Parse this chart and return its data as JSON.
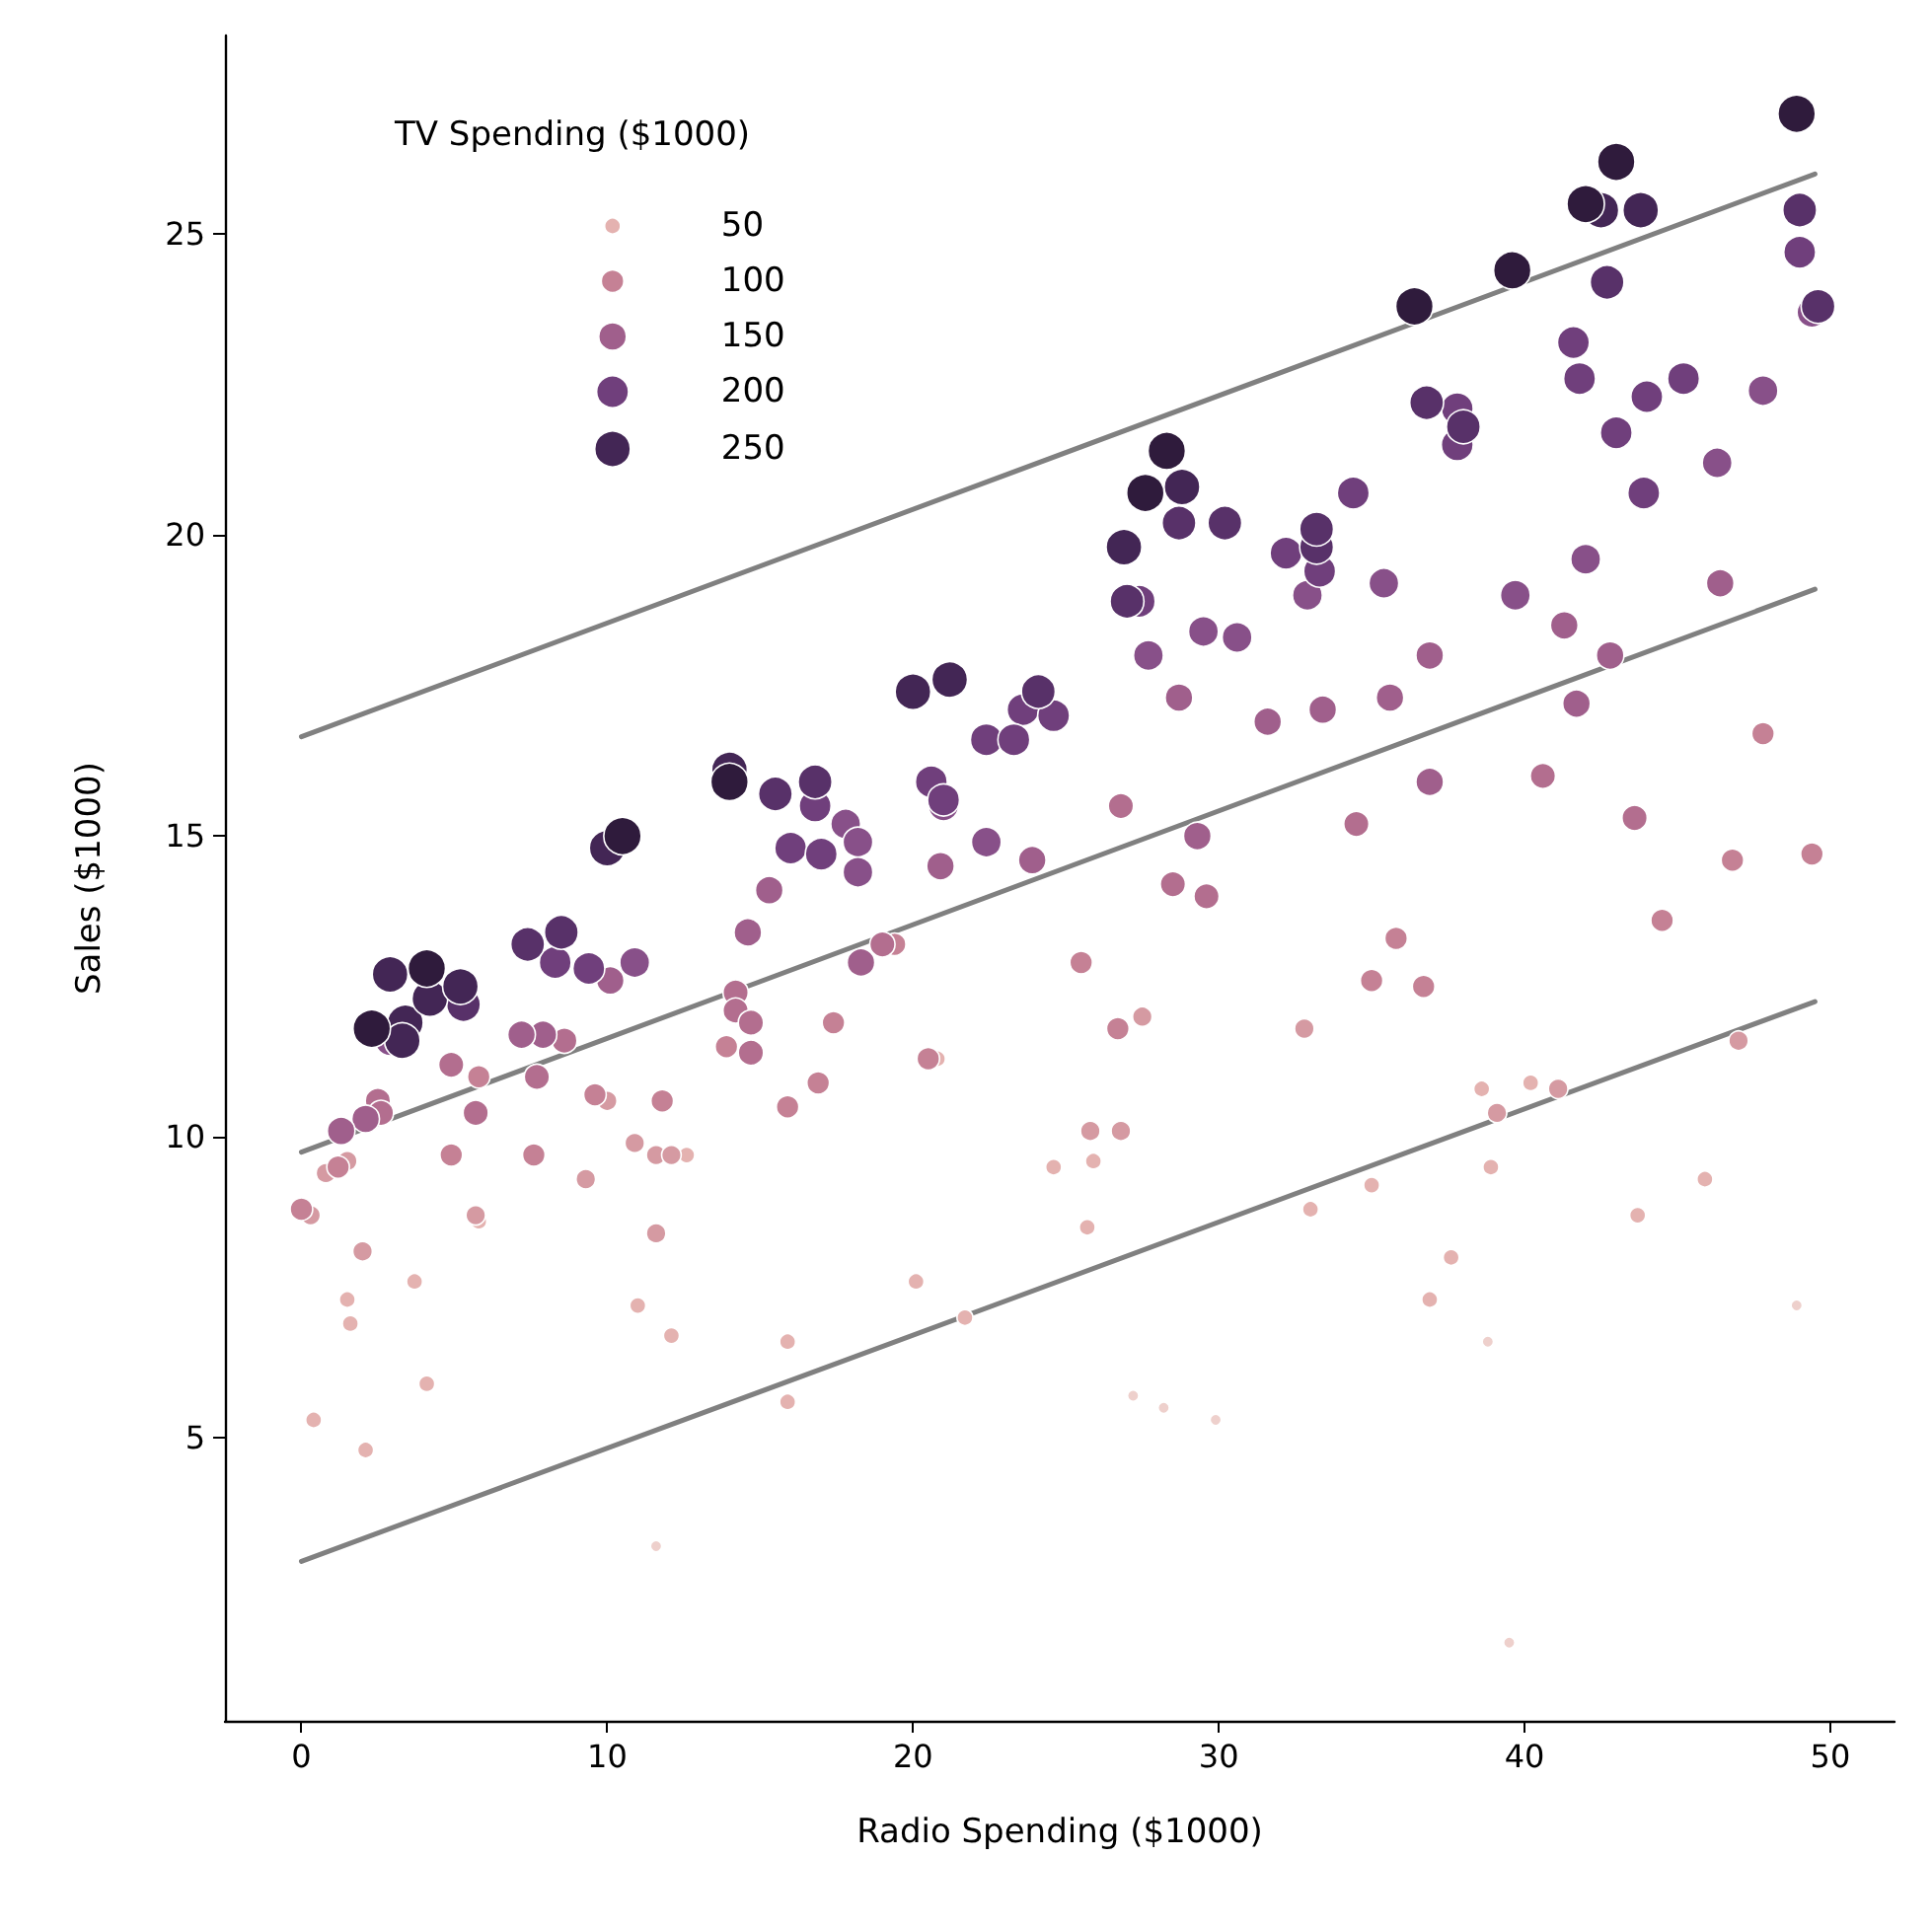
{
  "chart_data": {
    "type": "bubble",
    "xlabel": "Radio Spending ($1000)",
    "ylabel": "Sales ($1000)",
    "legend_title": "TV Spending ($1000)",
    "size_legend": [
      50,
      100,
      150,
      200,
      250
    ],
    "xlim": [
      -2.5,
      52.1
    ],
    "ylim": [
      0.3,
      28.3
    ],
    "xticks": [
      0,
      10,
      20,
      30,
      40,
      50
    ],
    "yticks": [
      5,
      10,
      15,
      20,
      25
    ],
    "grid": false,
    "series": [
      {
        "color": "#eed0cc",
        "x": [
          11.6,
          27.2,
          28.2,
          29.9,
          38.8,
          39.5,
          48.9
        ],
        "values": [
          3.2,
          5.7,
          5.5,
          5.3,
          6.6,
          1.6,
          7.2
        ],
        "sizes": [
          25,
          25,
          25,
          25,
          25,
          25,
          25
        ]
      },
      {
        "color": "#e4b2b0",
        "x": [
          20.8,
          1.5,
          1.6,
          3.7,
          4.1,
          0.4,
          2.1,
          5.8,
          12.6,
          11.0,
          12.1,
          15.9,
          15.9,
          20.1,
          21.7,
          24.6,
          25.9,
          25.7,
          33.0,
          35.0,
          36.9,
          37.6,
          38.6,
          38.9,
          40.2,
          43.7,
          45.9
        ],
        "values": [
          11.3,
          7.3,
          6.9,
          7.6,
          5.9,
          5.3,
          4.8,
          8.6,
          9.7,
          7.2,
          6.7,
          6.6,
          5.6,
          7.6,
          7.0,
          9.5,
          9.6,
          8.5,
          8.8,
          9.2,
          7.3,
          8.0,
          10.8,
          9.5,
          10.9,
          8.7,
          9.3
        ],
        "sizes": [
          50,
          50,
          50,
          50,
          50,
          50,
          50,
          50,
          50,
          50,
          50,
          50,
          50,
          50,
          50,
          50,
          50,
          50,
          50,
          50,
          50,
          50,
          50,
          50,
          50,
          50,
          50
        ]
      },
      {
        "color": "#d59aa2",
        "x": [
          1.5,
          0.8,
          0.3,
          2.0,
          5.7,
          10.0,
          9.3,
          10.9,
          11.6,
          12.1,
          11.6,
          25.8,
          26.8,
          27.5,
          32.8,
          39.1,
          41.1,
          47.0
        ],
        "values": [
          9.6,
          9.4,
          8.7,
          8.1,
          8.7,
          10.6,
          9.3,
          9.9,
          9.7,
          9.7,
          8.4,
          10.1,
          10.1,
          12.0,
          11.8,
          10.4,
          10.8,
          11.6
        ],
        "sizes": [
          75,
          75,
          75,
          75,
          75,
          75,
          75,
          75,
          75,
          75,
          75,
          75,
          75,
          75,
          75,
          75,
          75,
          75
        ]
      },
      {
        "color": "#c58195",
        "x": [
          19.4,
          13.9,
          17.4,
          16.9,
          15.9,
          20.5,
          5.8,
          4.9,
          1.2,
          0.0,
          7.6,
          9.6,
          11.8,
          25.5,
          26.7,
          35.0,
          35.8,
          36.7,
          44.5,
          46.8,
          47.8,
          49.4
        ],
        "values": [
          13.2,
          11.5,
          11.9,
          10.9,
          10.5,
          11.3,
          11.0,
          9.7,
          9.5,
          8.8,
          9.7,
          10.7,
          10.6,
          12.9,
          11.8,
          12.6,
          13.3,
          12.5,
          13.6,
          14.6,
          16.7,
          14.7
        ],
        "sizes": [
          100,
          100,
          100,
          100,
          100,
          100,
          100,
          100,
          100,
          100,
          100,
          100,
          100,
          100,
          100,
          100,
          100,
          100,
          100,
          100,
          100,
          100
        ]
      },
      {
        "color": "#b36e8f",
        "x": [
          40.6,
          43.6,
          34.5,
          28.5,
          29.6,
          26.8,
          19.0,
          14.2,
          14.2,
          14.7,
          14.7,
          7.7,
          8.6,
          4.9,
          5.7,
          2.5,
          2.6
        ],
        "values": [
          16.0,
          15.3,
          15.2,
          14.2,
          14.0,
          15.5,
          13.2,
          12.4,
          12.1,
          11.9,
          11.4,
          11.0,
          11.6,
          11.2,
          10.4,
          10.6,
          10.4
        ],
        "sizes": [
          125,
          125,
          125,
          125,
          125,
          125,
          125,
          125,
          125,
          125,
          125,
          125,
          125,
          125,
          125,
          125,
          125
        ]
      },
      {
        "color": "#a05f8c",
        "x": [
          46.4,
          41.3,
          42.8,
          41.7,
          36.9,
          35.6,
          28.7,
          31.6,
          33.4,
          36.9,
          29.3,
          23.9,
          20.9,
          15.3,
          18.3,
          14.6,
          10.1,
          7.9,
          7.2,
          2.1,
          1.3
        ],
        "values": [
          19.2,
          18.5,
          18.0,
          17.2,
          18.0,
          17.3,
          17.3,
          16.9,
          17.1,
          15.9,
          15.0,
          14.6,
          14.5,
          14.1,
          12.9,
          13.4,
          12.6,
          11.7,
          11.7,
          10.3,
          10.1
        ],
        "sizes": [
          150,
          150,
          150,
          150,
          150,
          150,
          150,
          150,
          150,
          150,
          150,
          150,
          150,
          150,
          150,
          150,
          150,
          150,
          150,
          150,
          150
        ]
      },
      {
        "color": "#885089",
        "x": [
          49.4,
          42.0,
          39.7,
          47.8,
          46.3,
          35.4,
          32.9,
          30.6,
          29.5,
          27.7,
          21.0,
          22.4,
          17.8,
          18.2,
          18.2,
          10.9,
          2.9
        ],
        "values": [
          23.7,
          19.6,
          19.0,
          22.4,
          21.2,
          19.2,
          19.0,
          18.3,
          18.4,
          18.0,
          15.5,
          14.9,
          15.2,
          14.9,
          14.4,
          12.9,
          11.6
        ],
        "sizes": [
          175,
          175,
          175,
          175,
          175,
          175,
          175,
          175,
          175,
          175,
          175,
          175,
          175,
          175,
          175,
          175,
          175
        ]
      },
      {
        "color": "#703f7c",
        "x": [
          8.3,
          23.6,
          27.4,
          49.0,
          37.8,
          37.8,
          41.6,
          41.8,
          44.0,
          45.2,
          43.0,
          43.9,
          34.4,
          33.3,
          32.2,
          24.6,
          22.4,
          23.3,
          20.6,
          21.0,
          16.8,
          16.0,
          17.0,
          9.4
        ],
        "values": [
          12.9,
          17.1,
          18.9,
          24.7,
          22.1,
          21.5,
          23.2,
          22.6,
          22.3,
          22.6,
          21.7,
          20.7,
          20.7,
          19.4,
          19.7,
          17.0,
          16.6,
          16.6,
          15.9,
          15.6,
          15.5,
          14.8,
          14.7,
          12.8
        ],
        "sizes": [
          200,
          200,
          200,
          200,
          200,
          200,
          200,
          200,
          200,
          200,
          200,
          200,
          200,
          200,
          200,
          200,
          200,
          200,
          200,
          200,
          200,
          200,
          200,
          200
        ]
      },
      {
        "color": "#583169",
        "x": [
          5.3,
          7.4,
          8.5,
          24.1,
          28.7,
          27.0,
          49.0,
          49.6,
          42.7,
          36.8,
          38.0,
          33.2,
          33.2,
          30.2,
          16.8,
          15.5
        ],
        "values": [
          12.2,
          13.2,
          13.4,
          17.4,
          20.2,
          18.9,
          25.4,
          23.8,
          24.2,
          22.2,
          21.8,
          19.8,
          20.1,
          20.2,
          15.9,
          15.7
        ],
        "sizes": [
          225,
          225,
          225,
          225,
          225,
          225,
          225,
          225,
          225,
          225,
          225,
          225,
          225,
          225,
          225,
          225
        ]
      },
      {
        "color": "#432655",
        "x": [
          2.9,
          3.4,
          4.2,
          3.3,
          5.2,
          10.0,
          14.0,
          20.0,
          21.2,
          26.9,
          28.8,
          42.5,
          43.8
        ],
        "values": [
          12.7,
          11.9,
          12.3,
          11.6,
          12.5,
          14.8,
          16.1,
          17.4,
          17.6,
          19.8,
          20.8,
          25.4,
          25.4
        ],
        "sizes": [
          250,
          250,
          250,
          250,
          250,
          250,
          250,
          250,
          250,
          250,
          250,
          250,
          250
        ]
      },
      {
        "color": "#2f1b3c",
        "x": [
          2.3,
          4.1,
          10.5,
          14.0,
          27.6,
          28.3,
          36.4,
          39.6,
          43.0,
          42.0,
          48.9
        ],
        "values": [
          11.8,
          12.8,
          15.0,
          15.9,
          20.7,
          21.4,
          23.8,
          24.4,
          26.2,
          25.5,
          27.0
        ],
        "sizes": [
          275,
          275,
          275,
          275,
          275,
          275,
          275,
          275,
          275,
          275,
          275
        ]
      },
      {
        "type": "line",
        "color": "#808080",
        "x": [
          0,
          49.5
        ],
        "values": [
          16.65,
          26.0
        ]
      },
      {
        "type": "line",
        "color": "#808080",
        "x": [
          0,
          49.5
        ],
        "values": [
          9.75,
          19.1
        ]
      },
      {
        "type": "line",
        "color": "#808080",
        "x": [
          0,
          49.5
        ],
        "values": [
          2.95,
          12.25
        ]
      }
    ]
  }
}
